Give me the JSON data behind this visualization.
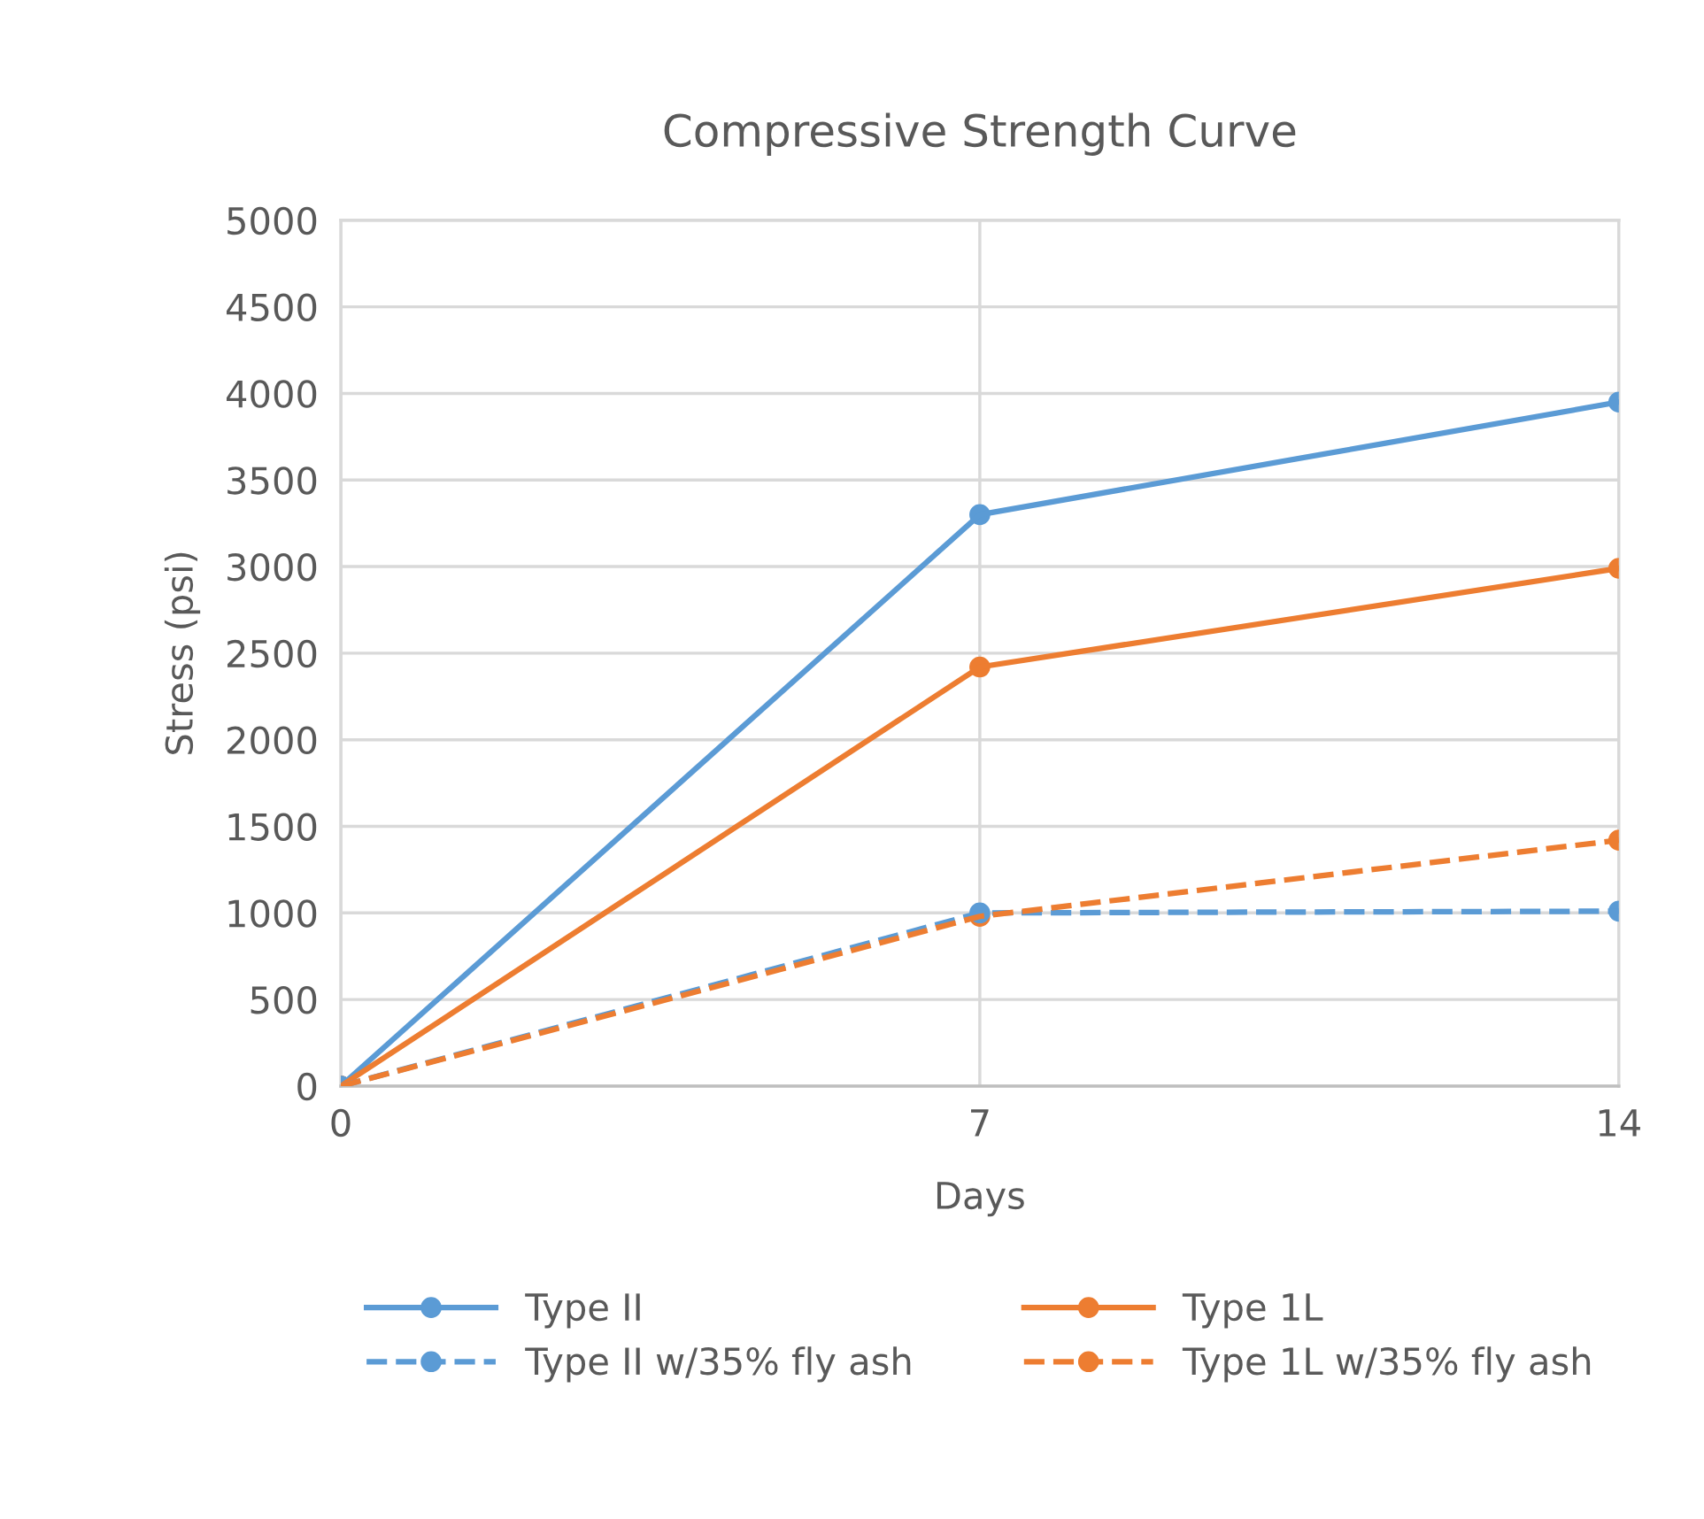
{
  "chart_data": {
    "type": "line",
    "title": "Compressive Strength Curve",
    "xlabel": "Days",
    "ylabel": "Stress (psi)",
    "x": [
      0,
      7,
      14
    ],
    "xlim": [
      0,
      14
    ],
    "xticks": [
      0,
      7,
      14
    ],
    "ylim": [
      0,
      5000
    ],
    "yticks": [
      0,
      500,
      1000,
      1500,
      2000,
      2500,
      3000,
      3500,
      4000,
      4500,
      5000
    ],
    "grid": true,
    "legend": "bottom",
    "marker": "circle",
    "series": [
      {
        "name": "Type II",
        "color": "#5b9bd5",
        "values": [
          0,
          3300,
          3950
        ],
        "line_style": "solid"
      },
      {
        "name": "Type 1L",
        "color": "#ed7d31",
        "values": [
          0,
          2420,
          2990
        ],
        "line_style": "solid"
      },
      {
        "name": "Type II w/35% fly ash",
        "color": "#5b9bd5",
        "values": [
          0,
          1000,
          1010
        ],
        "line_style": "dashed"
      },
      {
        "name": "Type 1L w/35% fly ash",
        "color": "#ed7d31",
        "values": [
          0,
          980,
          1420
        ],
        "line_style": "dashed"
      }
    ]
  }
}
